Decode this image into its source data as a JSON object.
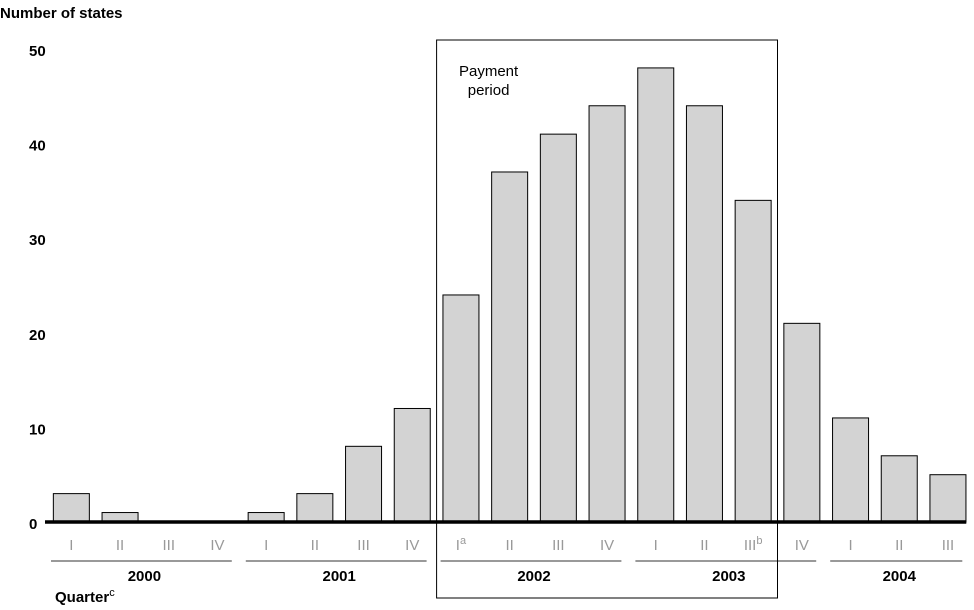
{
  "chart_data": {
    "type": "bar",
    "y_label": "Number of states",
    "x_label": "Quarter",
    "x_label_superscript": "c",
    "groups": [
      {
        "label": "2000",
        "categories": [
          "I",
          "II",
          "III",
          "IV"
        ]
      },
      {
        "label": "2001",
        "categories": [
          "I",
          "II",
          "III",
          "IV"
        ]
      },
      {
        "label": "2002",
        "categories": [
          "I",
          "II",
          "III",
          "IV"
        ]
      },
      {
        "label": "2003",
        "categories": [
          "I",
          "II",
          "III",
          "IV"
        ]
      },
      {
        "label": "2004",
        "categories": [
          "I",
          "II",
          "III"
        ]
      }
    ],
    "category_superscripts": [
      null,
      null,
      null,
      null,
      null,
      null,
      null,
      null,
      "a",
      null,
      null,
      null,
      null,
      null,
      "b",
      null,
      null,
      null,
      null
    ],
    "values": [
      3,
      1,
      0,
      0,
      1,
      3,
      8,
      12,
      24,
      37,
      41,
      44,
      48,
      44,
      34,
      21,
      11,
      7,
      5
    ],
    "color": "#d3d3d3",
    "ylim": [
      0,
      50
    ],
    "yticks": [
      0,
      10,
      20,
      30,
      40,
      50
    ],
    "grid": false,
    "highlight": {
      "text": "Payment period",
      "first_category": 8,
      "last_category": 14
    }
  }
}
